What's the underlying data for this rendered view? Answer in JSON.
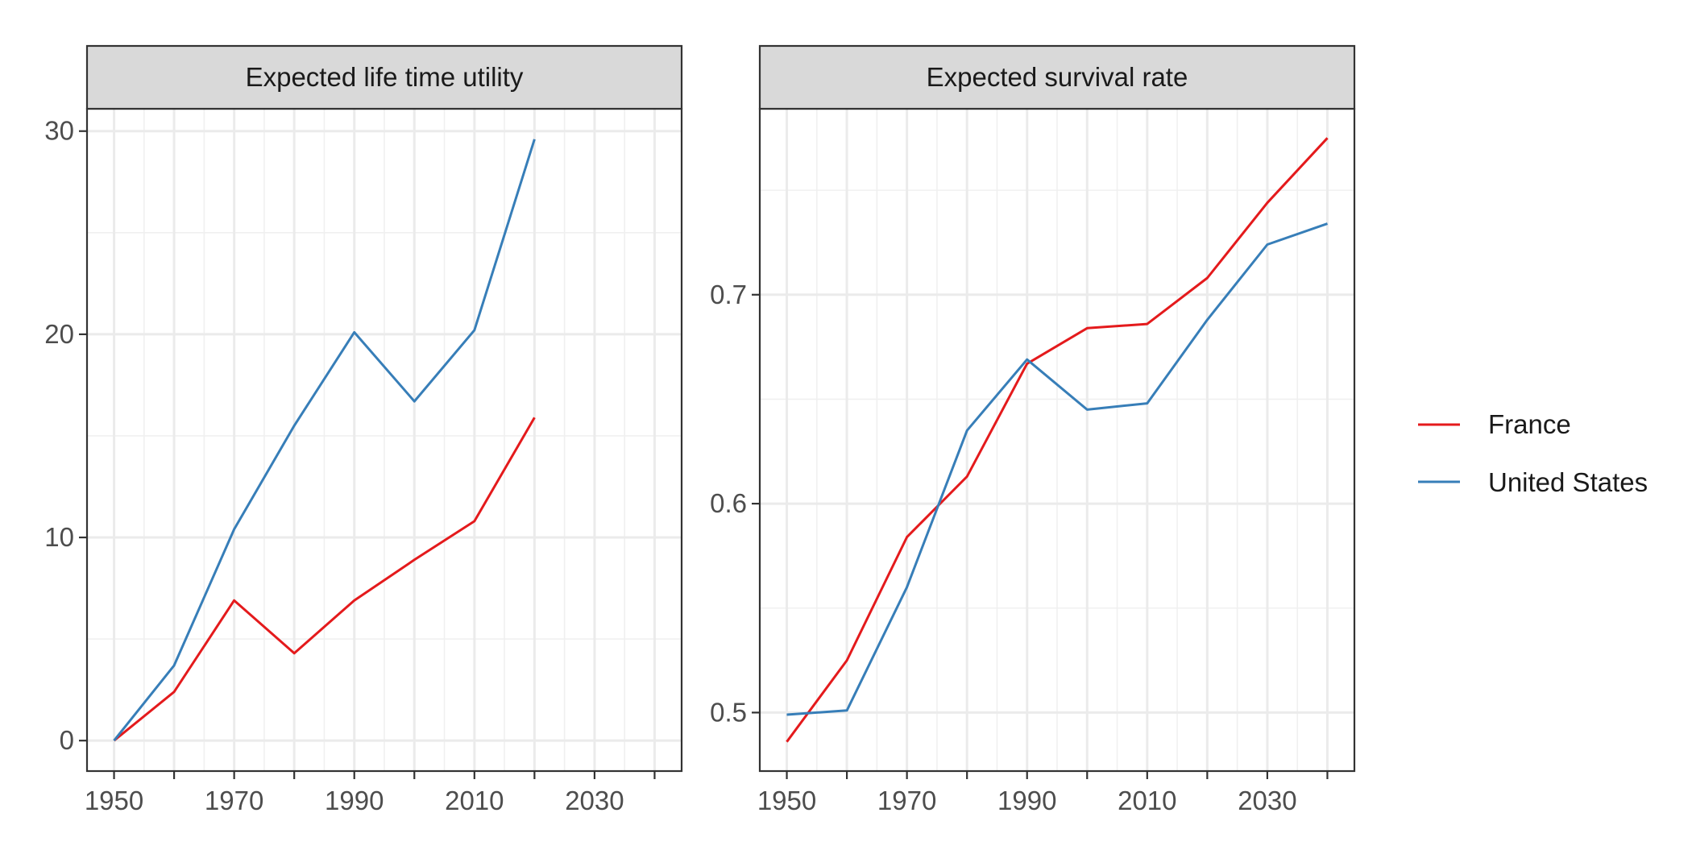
{
  "colors": {
    "France": "#e41a1c",
    "United States": "#377eb8"
  },
  "legend": {
    "items": [
      "France",
      "United States"
    ]
  },
  "chart_data": [
    {
      "type": "line",
      "title": "Expected life time utility",
      "x": [
        1950,
        1960,
        1970,
        1980,
        1990,
        2000,
        2010,
        2020
      ],
      "series": [
        {
          "name": "France",
          "values": [
            0.0,
            2.4,
            6.9,
            4.3,
            6.9,
            8.9,
            10.8,
            15.9
          ]
        },
        {
          "name": "United States",
          "values": [
            0.0,
            3.7,
            10.4,
            15.5,
            20.1,
            16.7,
            20.2,
            29.6
          ]
        }
      ],
      "xlim": [
        1945.5,
        2044.5
      ],
      "ylim": [
        -1.5,
        31.1
      ],
      "xticks": [
        1950,
        1970,
        1990,
        2010,
        2030
      ],
      "xtick_labels": [
        "1950",
        "1970",
        "1990",
        "2010",
        "2030"
      ],
      "yticks": [
        0,
        10,
        20,
        30
      ],
      "ytick_labels": [
        "0",
        "10",
        "20",
        "30"
      ],
      "xlabel": "",
      "ylabel": "",
      "grid": true
    },
    {
      "type": "line",
      "title": "Expected survival rate",
      "x": [
        1950,
        1960,
        1970,
        1980,
        1990,
        2000,
        2010,
        2020,
        2030,
        2040
      ],
      "series": [
        {
          "name": "France",
          "values": [
            0.486,
            0.525,
            0.584,
            0.613,
            0.667,
            0.684,
            0.686,
            0.708,
            0.744,
            0.775
          ]
        },
        {
          "name": "United States",
          "values": [
            0.499,
            0.501,
            0.56,
            0.635,
            0.669,
            0.645,
            0.648,
            0.688,
            0.724,
            0.734
          ]
        }
      ],
      "xlim": [
        1945.5,
        2044.5
      ],
      "ylim": [
        0.472,
        0.789
      ],
      "xticks": [
        1950,
        1970,
        1990,
        2010,
        2030
      ],
      "xtick_labels": [
        "1950",
        "1970",
        "1990",
        "2010",
        "2030"
      ],
      "yticks": [
        0.5,
        0.6,
        0.7
      ],
      "ytick_labels": [
        "0.5",
        "0.6",
        "0.7"
      ],
      "xlabel": "",
      "ylabel": "",
      "grid": true
    }
  ]
}
